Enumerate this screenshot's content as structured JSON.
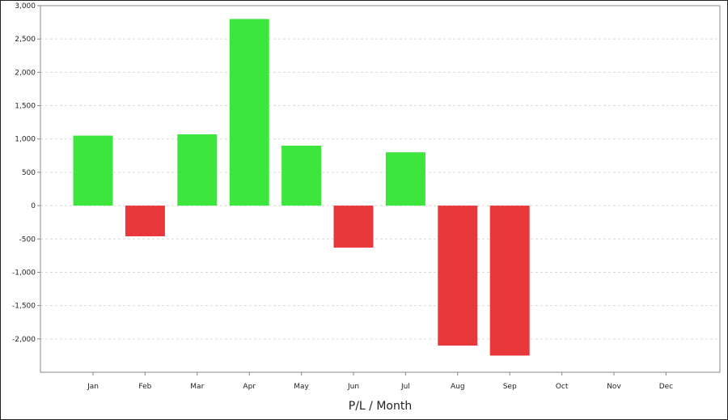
{
  "chart_data": {
    "type": "bar",
    "categories": [
      "Jan",
      "Feb",
      "Mar",
      "Apr",
      "May",
      "Jun",
      "Jul",
      "Aug",
      "Sep",
      "Oct",
      "Nov",
      "Dec"
    ],
    "values": [
      1050,
      -460,
      1070,
      2800,
      900,
      -630,
      800,
      -2100,
      -2250,
      null,
      null,
      null
    ],
    "xlabel": "P/L / Month",
    "ylabel": "",
    "ylim": [
      -2500,
      3000
    ],
    "yticks": [
      3000,
      2500,
      2000,
      1500,
      1000,
      500,
      0,
      -500,
      -1000,
      -1500,
      -2000
    ],
    "ytick_labels": [
      "3,000",
      "2,500",
      "2,000",
      "1,500",
      "1,000",
      "500",
      "0",
      "-500",
      "-1,000",
      "-1,500",
      "-2,000"
    ],
    "grid": true,
    "colors": {
      "positive": "#3de63d",
      "negative": "#e8383b",
      "grid": "#d9d9d9",
      "axis": "#888888"
    }
  }
}
